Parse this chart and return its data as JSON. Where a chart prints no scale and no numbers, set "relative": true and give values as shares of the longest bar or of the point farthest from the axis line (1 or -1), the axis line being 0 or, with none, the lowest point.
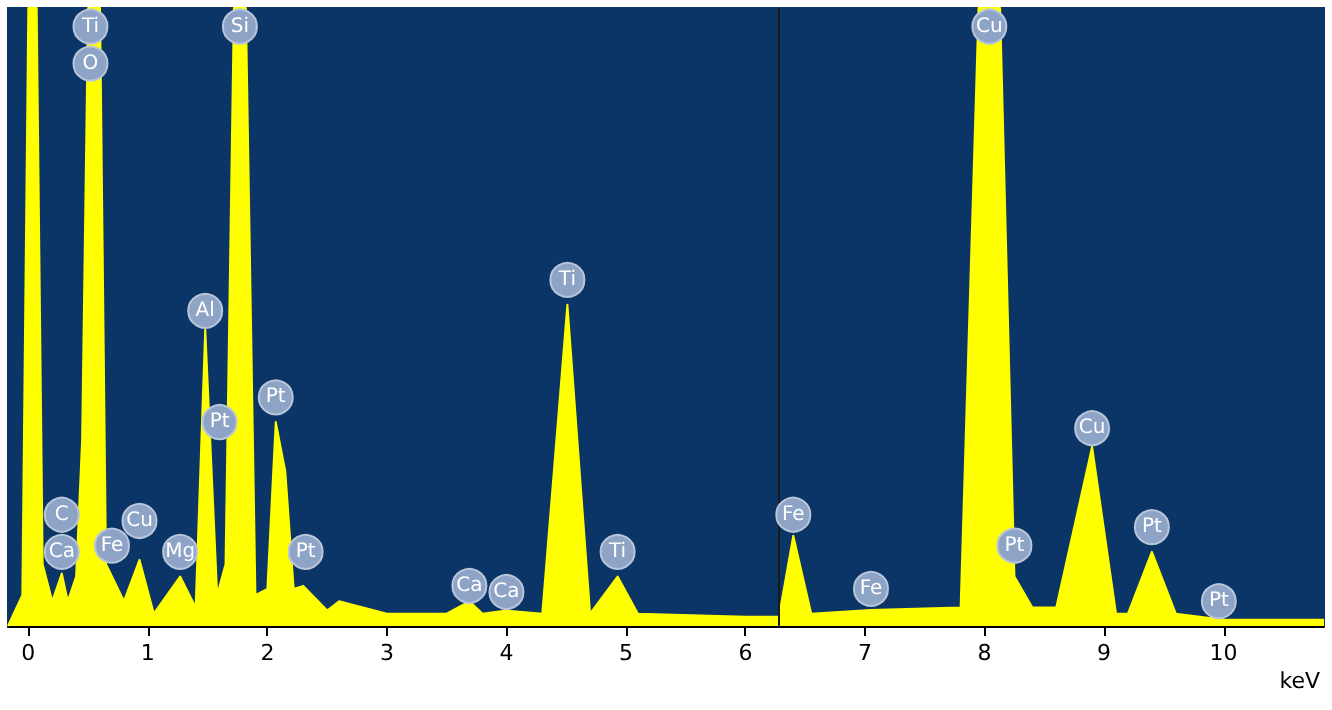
{
  "chart_data": {
    "type": "area",
    "relative": true,
    "xlabel": "keV",
    "xlim": [
      -0.17,
      10.84
    ],
    "xticks": [
      0,
      1,
      2,
      3,
      4,
      5,
      6,
      7,
      8,
      9,
      10
    ],
    "grid": false,
    "marker": "none",
    "series": [
      {
        "color": "#ffff00",
        "x": [
          -0.17,
          -0.05,
          0.0,
          0.07,
          0.12,
          0.2,
          0.28,
          0.33,
          0.4,
          0.45,
          0.5,
          0.6,
          0.65,
          0.7,
          0.8,
          0.93,
          1.05,
          1.27,
          1.4,
          1.48,
          1.58,
          1.65,
          1.72,
          1.82,
          1.9,
          2.0,
          2.07,
          2.15,
          2.22,
          2.3,
          2.5,
          2.6,
          3.0,
          3.5,
          3.69,
          3.8,
          4.0,
          4.3,
          4.51,
          4.7,
          4.93,
          5.1,
          6.0,
          6.28,
          6.4,
          6.55,
          7.05,
          7.8,
          7.95,
          8.13,
          8.25,
          8.4,
          8.6,
          8.9,
          9.1,
          9.2,
          9.4,
          9.6,
          10.0,
          10.84
        ],
        "values": [
          0,
          0.05,
          1,
          1,
          0.1,
          0.04,
          0.085,
          0.04,
          0.08,
          0.3,
          1,
          1,
          0.1,
          0.08,
          0.04,
          0.107,
          0.02,
          0.08,
          0.03,
          0.48,
          0.05,
          0.1,
          1,
          1,
          0.05,
          0.06,
          0.33,
          0.25,
          0.06,
          0.065,
          0.025,
          0.04,
          0.02,
          0.02,
          0.04,
          0.02,
          0.025,
          0.02,
          0.52,
          0.02,
          0.08,
          0.02,
          0.015,
          0.015,
          0.146,
          0.02,
          0.026,
          0.03,
          1,
          1,
          0.08,
          0.03,
          0.03,
          0.29,
          0.02,
          0.02,
          0.12,
          0.02,
          0.01,
          0.01
        ]
      }
    ],
    "ref_lines": [
      {
        "axis": "x",
        "value": 6.28,
        "color": "#1a1a1a"
      }
    ],
    "annotations": [
      {
        "text": "Ti",
        "x": 0.52,
        "y": 0.97
      },
      {
        "text": "O",
        "x": 0.52,
        "y": 0.91
      },
      {
        "text": "Si",
        "x": 1.77,
        "y": 0.97
      },
      {
        "text": "C",
        "x": 0.28,
        "y": 0.18
      },
      {
        "text": "Ca",
        "x": 0.28,
        "y": 0.12
      },
      {
        "text": "Fe",
        "x": 0.7,
        "y": 0.13
      },
      {
        "text": "Cu",
        "x": 0.93,
        "y": 0.17
      },
      {
        "text": "Mg",
        "x": 1.27,
        "y": 0.12
      },
      {
        "text": "Al",
        "x": 1.48,
        "y": 0.51
      },
      {
        "text": "Pt",
        "x": 1.6,
        "y": 0.33
      },
      {
        "text": "Pt",
        "x": 2.07,
        "y": 0.37
      },
      {
        "text": "Pt",
        "x": 2.32,
        "y": 0.12
      },
      {
        "text": "Ca",
        "x": 3.69,
        "y": 0.065
      },
      {
        "text": "Ca",
        "x": 4.0,
        "y": 0.055
      },
      {
        "text": "Ti",
        "x": 4.51,
        "y": 0.56
      },
      {
        "text": "Ti",
        "x": 4.93,
        "y": 0.12
      },
      {
        "text": "Fe",
        "x": 6.4,
        "y": 0.18
      },
      {
        "text": "Fe",
        "x": 7.05,
        "y": 0.06
      },
      {
        "text": "Cu",
        "x": 8.04,
        "y": 0.97
      },
      {
        "text": "Pt",
        "x": 8.25,
        "y": 0.13
      },
      {
        "text": "Cu",
        "x": 8.9,
        "y": 0.32
      },
      {
        "text": "Pt",
        "x": 9.4,
        "y": 0.16
      },
      {
        "text": "Pt",
        "x": 9.96,
        "y": 0.04
      }
    ]
  }
}
